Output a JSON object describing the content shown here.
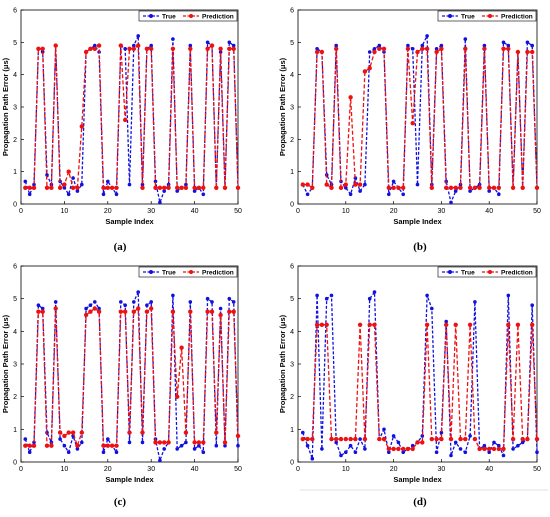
{
  "colors": {
    "true": "#1010e0",
    "prediction": "#ee1111",
    "axis": "#000000"
  },
  "chart_data": [
    {
      "type": "line",
      "panel_label": "(a)",
      "xlabel": "Sample Index",
      "ylabel": "Propagation Path Error (μs)",
      "xlim": [
        0,
        50
      ],
      "ylim": [
        0,
        6
      ],
      "xticks": [
        "0",
        "10",
        "20",
        "30",
        "40",
        "50"
      ],
      "yticks": [
        "0",
        "1",
        "2",
        "3",
        "4",
        "5",
        "6"
      ],
      "grid": false,
      "legend_position": "top-right",
      "series": [
        {
          "name": "True",
          "style": "dashed-dots",
          "color": "blue",
          "x": [
            1,
            2,
            3,
            4,
            5,
            6,
            7,
            8,
            9,
            10,
            11,
            12,
            13,
            14,
            15,
            16,
            17,
            18,
            19,
            20,
            21,
            22,
            23,
            24,
            25,
            26,
            27,
            28,
            29,
            30,
            31,
            32,
            33,
            34,
            35,
            36,
            37,
            38,
            39,
            40,
            41,
            42,
            43,
            44,
            45,
            46,
            47,
            48,
            49,
            50
          ],
          "values": [
            0.7,
            0.3,
            0.6,
            4.8,
            4.7,
            0.9,
            0.6,
            4.9,
            0.7,
            0.5,
            0.3,
            0.8,
            0.4,
            0.6,
            4.7,
            4.8,
            4.9,
            4.7,
            0.3,
            0.7,
            0.5,
            0.3,
            4.9,
            4.8,
            0.6,
            4.9,
            5.2,
            0.6,
            4.8,
            4.9,
            0.7,
            0.05,
            0.4,
            0.6,
            5.1,
            0.4,
            0.5,
            0.6,
            4.9,
            0.4,
            0.5,
            0.3,
            5.0,
            4.9,
            0.5,
            4.7,
            0.5,
            5.0,
            4.9,
            0.5
          ]
        },
        {
          "name": "Prediction",
          "style": "dashed-dots",
          "color": "red",
          "x": [
            1,
            2,
            3,
            4,
            5,
            6,
            7,
            8,
            9,
            10,
            11,
            12,
            13,
            14,
            15,
            16,
            17,
            18,
            19,
            20,
            21,
            22,
            23,
            24,
            25,
            26,
            27,
            28,
            29,
            30,
            31,
            32,
            33,
            34,
            35,
            36,
            37,
            38,
            39,
            40,
            41,
            42,
            43,
            44,
            45,
            46,
            47,
            48,
            49,
            50
          ],
          "values": [
            0.5,
            0.5,
            0.5,
            4.8,
            4.8,
            0.5,
            0.5,
            4.9,
            0.5,
            0.6,
            1.0,
            0.5,
            0.5,
            2.4,
            4.7,
            4.8,
            4.8,
            4.9,
            0.5,
            0.5,
            0.5,
            0.5,
            4.9,
            2.6,
            4.8,
            4.8,
            4.9,
            0.5,
            4.8,
            4.8,
            0.5,
            0.5,
            0.5,
            0.5,
            4.8,
            0.5,
            0.5,
            0.5,
            4.8,
            0.5,
            0.5,
            0.5,
            4.8,
            4.9,
            0.5,
            4.8,
            0.5,
            4.8,
            4.8,
            0.5
          ]
        }
      ]
    },
    {
      "type": "line",
      "panel_label": "(b)",
      "xlabel": "Sample Index",
      "ylabel": "Propagation Path Error (μs)",
      "xlim": [
        0,
        50
      ],
      "ylim": [
        0,
        6
      ],
      "xticks": [
        "0",
        "10",
        "20",
        "30",
        "40",
        "50"
      ],
      "yticks": [
        "0",
        "1",
        "2",
        "3",
        "4",
        "5",
        "6"
      ],
      "grid": false,
      "legend_position": "top-right",
      "series": [
        {
          "name": "True",
          "style": "dashed-dots",
          "color": "blue",
          "x": [
            1,
            2,
            3,
            4,
            5,
            6,
            7,
            8,
            9,
            10,
            11,
            12,
            13,
            14,
            15,
            16,
            17,
            18,
            19,
            20,
            21,
            22,
            23,
            24,
            25,
            26,
            27,
            28,
            29,
            30,
            31,
            32,
            33,
            34,
            35,
            36,
            37,
            38,
            39,
            40,
            41,
            42,
            43,
            44,
            45,
            46,
            47,
            48,
            49,
            50
          ],
          "values": [
            0.6,
            0.3,
            0.5,
            4.8,
            4.7,
            0.9,
            0.6,
            4.9,
            0.7,
            0.5,
            0.3,
            0.8,
            0.4,
            0.6,
            4.7,
            4.8,
            4.9,
            4.7,
            0.3,
            0.7,
            0.5,
            0.3,
            4.9,
            4.8,
            0.6,
            4.9,
            5.2,
            0.6,
            4.8,
            4.9,
            0.7,
            0.05,
            0.4,
            0.6,
            5.1,
            0.4,
            0.5,
            0.6,
            4.9,
            0.4,
            0.5,
            0.3,
            5.0,
            4.9,
            0.5,
            4.7,
            0.5,
            5.0,
            4.9,
            0.5
          ]
        },
        {
          "name": "Prediction",
          "style": "dashed-dots",
          "color": "red",
          "x": [
            1,
            2,
            3,
            4,
            5,
            6,
            7,
            8,
            9,
            10,
            11,
            12,
            13,
            14,
            15,
            16,
            17,
            18,
            19,
            20,
            21,
            22,
            23,
            24,
            25,
            26,
            27,
            28,
            29,
            30,
            31,
            32,
            33,
            34,
            35,
            36,
            37,
            38,
            39,
            40,
            41,
            42,
            43,
            44,
            45,
            46,
            47,
            48,
            49,
            50
          ],
          "values": [
            0.6,
            0.6,
            0.5,
            4.7,
            4.7,
            0.6,
            0.5,
            4.8,
            0.5,
            0.6,
            3.3,
            0.6,
            0.6,
            4.1,
            4.2,
            4.7,
            4.8,
            4.8,
            0.5,
            0.5,
            0.5,
            0.5,
            4.8,
            2.5,
            4.7,
            4.8,
            4.8,
            0.5,
            4.7,
            4.8,
            0.5,
            0.5,
            0.5,
            0.5,
            4.8,
            0.5,
            0.5,
            0.5,
            4.8,
            0.5,
            0.5,
            0.5,
            4.8,
            4.8,
            0.5,
            4.7,
            0.5,
            4.7,
            4.7,
            0.5
          ]
        }
      ]
    },
    {
      "type": "line",
      "panel_label": "(c)",
      "xlabel": "Sample Index",
      "ylabel": "Propagation Path Error (μs)",
      "xlim": [
        0,
        50
      ],
      "ylim": [
        0,
        6
      ],
      "xticks": [
        "0",
        "10",
        "20",
        "30",
        "40",
        "50"
      ],
      "yticks": [
        "0",
        "1",
        "2",
        "3",
        "4",
        "5",
        "6"
      ],
      "grid": false,
      "legend_position": "top-right",
      "series": [
        {
          "name": "True",
          "style": "dashed-dots",
          "color": "blue",
          "x": [
            1,
            2,
            3,
            4,
            5,
            6,
            7,
            8,
            9,
            10,
            11,
            12,
            13,
            14,
            15,
            16,
            17,
            18,
            19,
            20,
            21,
            22,
            23,
            24,
            25,
            26,
            27,
            28,
            29,
            30,
            31,
            32,
            33,
            34,
            35,
            36,
            37,
            38,
            39,
            40,
            41,
            42,
            43,
            44,
            45,
            46,
            47,
            48,
            49,
            50
          ],
          "values": [
            0.7,
            0.3,
            0.6,
            4.8,
            4.7,
            0.9,
            0.6,
            4.9,
            0.7,
            0.5,
            0.3,
            0.8,
            0.4,
            0.6,
            4.7,
            4.8,
            4.9,
            4.7,
            0.3,
            0.7,
            0.5,
            0.3,
            4.9,
            4.8,
            0.6,
            4.9,
            5.2,
            0.6,
            4.8,
            4.9,
            0.7,
            0.05,
            0.4,
            0.6,
            5.1,
            0.4,
            0.5,
            0.6,
            4.9,
            0.4,
            0.5,
            0.3,
            5.0,
            4.9,
            0.5,
            4.7,
            0.5,
            5.0,
            4.9,
            0.5
          ]
        },
        {
          "name": "Prediction",
          "style": "dashed-dots",
          "color": "red",
          "x": [
            1,
            2,
            3,
            4,
            5,
            6,
            7,
            8,
            9,
            10,
            11,
            12,
            13,
            14,
            15,
            16,
            17,
            18,
            19,
            20,
            21,
            22,
            23,
            24,
            25,
            26,
            27,
            28,
            29,
            30,
            31,
            32,
            33,
            34,
            35,
            36,
            37,
            38,
            39,
            40,
            41,
            42,
            43,
            44,
            45,
            46,
            47,
            48,
            49,
            50
          ],
          "values": [
            0.5,
            0.5,
            0.5,
            4.6,
            4.6,
            0.5,
            0.5,
            4.7,
            0.9,
            0.8,
            0.9,
            0.9,
            0.5,
            0.9,
            4.5,
            4.6,
            4.7,
            4.6,
            0.5,
            0.5,
            0.5,
            0.5,
            4.6,
            4.6,
            0.9,
            4.6,
            4.7,
            0.9,
            4.6,
            4.7,
            0.6,
            0.6,
            0.6,
            0.6,
            4.6,
            2.0,
            3.5,
            0.9,
            4.6,
            0.6,
            0.6,
            0.6,
            4.6,
            4.6,
            0.9,
            4.5,
            0.6,
            4.6,
            4.6,
            0.8
          ]
        }
      ]
    },
    {
      "type": "line",
      "panel_label": "(d)",
      "xlabel": "Sample Index",
      "ylabel": "Propagation Path Error (μs)",
      "xlim": [
        0,
        50
      ],
      "ylim": [
        0,
        6
      ],
      "xticks": [
        "0",
        "10",
        "20",
        "30",
        "40",
        "50"
      ],
      "yticks": [
        "0",
        "1",
        "2",
        "3",
        "4",
        "5",
        "6"
      ],
      "grid": false,
      "legend_position": "top-right",
      "series": [
        {
          "name": "True",
          "style": "dashed-dots",
          "color": "blue",
          "x": [
            1,
            2,
            3,
            4,
            5,
            6,
            7,
            8,
            9,
            10,
            11,
            12,
            13,
            14,
            15,
            16,
            17,
            18,
            19,
            20,
            21,
            22,
            23,
            24,
            25,
            26,
            27,
            28,
            29,
            30,
            31,
            32,
            33,
            34,
            35,
            36,
            37,
            38,
            39,
            40,
            41,
            42,
            43,
            44,
            45,
            46,
            47,
            48,
            49,
            50
          ],
          "values": [
            0.9,
            0.5,
            0.1,
            5.1,
            0.4,
            5.0,
            5.1,
            0.6,
            0.2,
            0.3,
            0.5,
            0.3,
            0.7,
            0.4,
            5.0,
            5.2,
            0.7,
            1.0,
            0.3,
            0.8,
            0.6,
            0.3,
            0.4,
            0.5,
            0.6,
            0.8,
            5.1,
            4.7,
            0.3,
            0.9,
            4.3,
            0.2,
            0.6,
            0.4,
            0.3,
            0.8,
            4.9,
            0.4,
            0.5,
            0.3,
            0.6,
            0.5,
            0.2,
            5.1,
            0.4,
            0.5,
            0.6,
            0.7,
            4.8,
            0.3
          ]
        },
        {
          "name": "Prediction",
          "style": "dashed-dots",
          "color": "red",
          "x": [
            1,
            2,
            3,
            4,
            5,
            6,
            7,
            8,
            9,
            10,
            11,
            12,
            13,
            14,
            15,
            16,
            17,
            18,
            19,
            20,
            21,
            22,
            23,
            24,
            25,
            26,
            27,
            28,
            29,
            30,
            31,
            32,
            33,
            34,
            35,
            36,
            37,
            38,
            39,
            40,
            41,
            42,
            43,
            44,
            45,
            46,
            47,
            48,
            49,
            50
          ],
          "values": [
            0.7,
            0.7,
            0.7,
            4.2,
            4.2,
            4.2,
            0.7,
            0.7,
            0.7,
            0.7,
            0.7,
            0.7,
            4.2,
            0.7,
            4.2,
            4.2,
            0.7,
            0.7,
            0.4,
            0.4,
            0.4,
            0.4,
            0.4,
            0.4,
            0.6,
            0.6,
            4.2,
            0.7,
            0.7,
            0.7,
            4.2,
            0.7,
            4.2,
            0.7,
            0.7,
            4.2,
            0.7,
            0.4,
            0.4,
            0.4,
            0.4,
            0.4,
            0.4,
            4.2,
            0.7,
            4.2,
            0.7,
            0.7,
            4.2,
            0.7
          ]
        }
      ]
    }
  ]
}
